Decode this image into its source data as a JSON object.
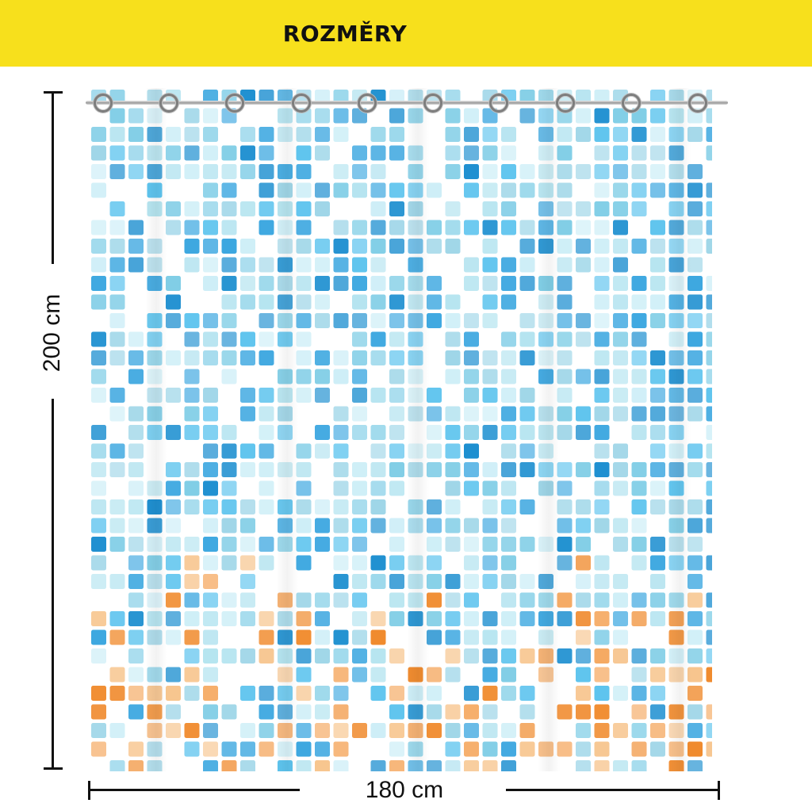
{
  "banner": {
    "title": "ROZMĚRY",
    "background": "#f7e01c"
  },
  "product": {
    "pattern": "mosaic-tiles",
    "tile_colors": [
      "#1d8fd0",
      "#3ca7e0",
      "#5ec4ee",
      "#7fcde6",
      "#9fd6e8",
      "#b5e4f0",
      "#cdeef7",
      "#f08a2c",
      "#f5a860",
      "#f7c58e"
    ]
  },
  "dimensions": {
    "height_label": "200 cm",
    "width_label": "180 cm"
  }
}
